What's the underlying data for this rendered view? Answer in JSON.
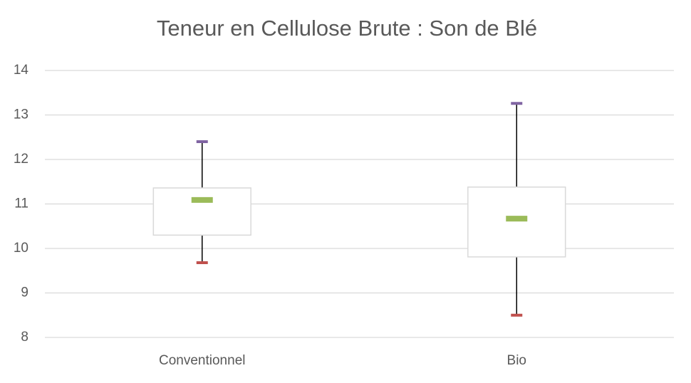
{
  "chart_data": {
    "type": "box",
    "title": "Teneur en Cellulose Brute : Son de Blé",
    "categories": [
      "Conventionnel",
      "Bio"
    ],
    "min": [
      9.68,
      8.5
    ],
    "q1": [
      10.3,
      9.81
    ],
    "median": [
      11.09,
      10.67
    ],
    "q3": [
      11.36,
      11.38
    ],
    "max": [
      12.4,
      13.26
    ],
    "min_color": "#c0504d",
    "median_color": "#9bbb59",
    "max_color": "#8064a2",
    "box_color": "#d9d9d9",
    "whisker_color": "#000000",
    "ylim": [
      8,
      14
    ],
    "yticks": [
      8,
      9,
      10,
      11,
      12,
      13,
      14
    ],
    "grid": true
  }
}
